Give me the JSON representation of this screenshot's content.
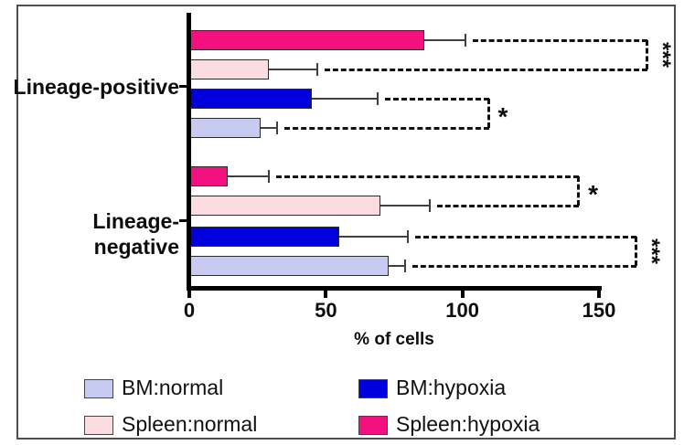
{
  "figure": {
    "background": "#ffffff",
    "frame_color": "#4f4f4f",
    "axis_color": "#000000",
    "error_bar_color": "#404040",
    "bracket_color": "#111111"
  },
  "chart_data": {
    "type": "bar",
    "orientation": "horizontal",
    "title": "",
    "xlabel": "% of cells",
    "ylabel": "",
    "grid": false,
    "legend_position": "bottom",
    "categories": [
      "Lineage-positive",
      "Lineage-negative"
    ],
    "x_ticks": [
      "0",
      "50",
      "100",
      "150"
    ],
    "xlim": [
      0,
      168
    ],
    "series": [
      {
        "name": "BM:normal",
        "color": "#c7caf1",
        "values": [
          26,
          73
        ],
        "errors_plus": [
          6,
          6
        ]
      },
      {
        "name": "Spleen:normal",
        "color": "#fbdce1",
        "values": [
          29,
          70
        ],
        "errors_plus": [
          18,
          18
        ]
      },
      {
        "name": "BM:hypoxia",
        "color": "#0000df",
        "values": [
          45,
          55
        ],
        "errors_plus": [
          24,
          25
        ]
      },
      {
        "name": "Spleen:hypoxia",
        "color": "#f2117e",
        "values": [
          86,
          14
        ],
        "errors_plus": [
          15,
          15
        ]
      }
    ],
    "bar_order_top_to_bottom": [
      "Spleen:hypoxia",
      "Spleen:normal",
      "BM:hypoxia",
      "BM:normal"
    ],
    "significance": [
      {
        "category": "Lineage-positive",
        "pair": [
          "Spleen:hypoxia",
          "Spleen:normal"
        ],
        "label": "***",
        "bracket_x": 167
      },
      {
        "category": "Lineage-positive",
        "pair": [
          "BM:hypoxia",
          "BM:normal"
        ],
        "label": "*",
        "bracket_x": 109
      },
      {
        "category": "Lineage-negative",
        "pair": [
          "Spleen:hypoxia",
          "Spleen:normal"
        ],
        "label": "*",
        "bracket_x": 142
      },
      {
        "category": "Lineage-negative",
        "pair": [
          "BM:hypoxia",
          "BM:normal"
        ],
        "label": "***",
        "bracket_x": 163
      }
    ]
  },
  "legend": {
    "columns": [
      {
        "items": [
          {
            "label": "BM:normal",
            "color": "#c7caf1"
          },
          {
            "label": "Spleen:normal",
            "color": "#fbdce1"
          }
        ]
      },
      {
        "items": [
          {
            "label": "BM:hypoxia",
            "color": "#0000df"
          },
          {
            "label": "Spleen:hypoxia",
            "color": "#f2117e"
          }
        ]
      }
    ]
  }
}
